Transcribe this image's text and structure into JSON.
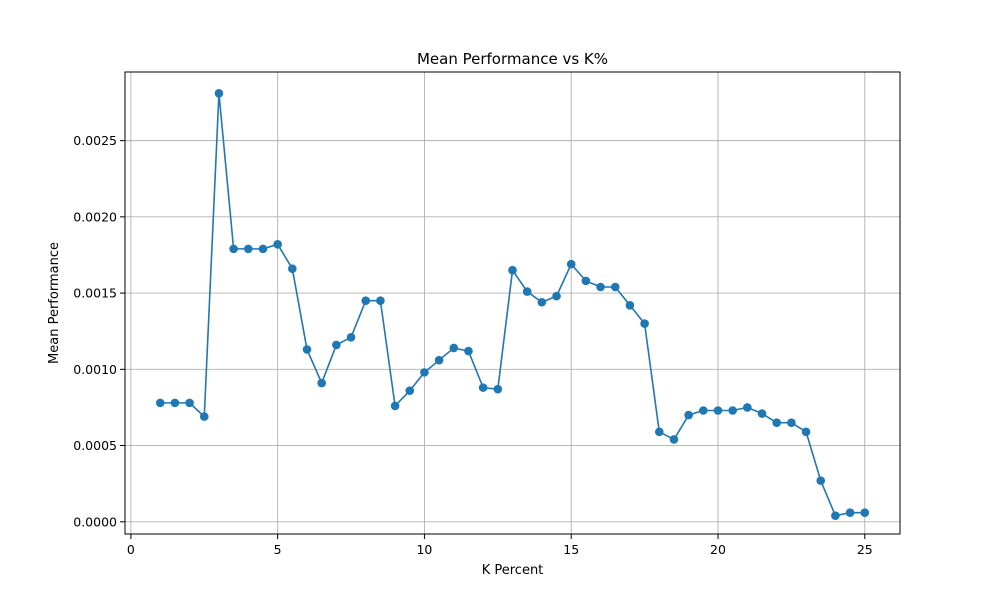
{
  "chart_data": {
    "type": "line",
    "title": "Mean Performance vs K%",
    "xlabel": "K Percent",
    "ylabel": "Mean Performance",
    "xlim": [
      -0.2,
      26.2
    ],
    "ylim": [
      -8e-05,
      0.00295
    ],
    "xticks": [
      0,
      5,
      10,
      15,
      20,
      25
    ],
    "xtick_labels": [
      "0",
      "5",
      "10",
      "15",
      "20",
      "25"
    ],
    "yticks": [
      0.0,
      0.0005,
      0.001,
      0.0015,
      0.002,
      0.0025
    ],
    "ytick_labels": [
      "0.0000",
      "0.0005",
      "0.0010",
      "0.0015",
      "0.0020",
      "0.0025"
    ],
    "grid": true,
    "legend": "none",
    "color": "#1f77b4",
    "marker": "circle",
    "series": [
      {
        "x": [
          1,
          1.5,
          2,
          2.5,
          3,
          3.5,
          4,
          4.5,
          5,
          5.5,
          6,
          6.5,
          7,
          7.5,
          8,
          8.5,
          9,
          9.5,
          10,
          10.5,
          11,
          11.5,
          12,
          12.5,
          13,
          13.5,
          14,
          14.5,
          15,
          15.5,
          16,
          16.5,
          17,
          17.5,
          18,
          18.5,
          19,
          19.5,
          20,
          20.5,
          21,
          21.5,
          22,
          22.5,
          23,
          23.5,
          24,
          24.5,
          25
        ],
        "values": [
          0.00078,
          0.00078,
          0.00078,
          0.00069,
          0.00281,
          0.00179,
          0.00179,
          0.00179,
          0.00182,
          0.00166,
          0.00113,
          0.00091,
          0.00116,
          0.00121,
          0.00145,
          0.00145,
          0.00076,
          0.00086,
          0.00098,
          0.00106,
          0.00114,
          0.00112,
          0.00088,
          0.00087,
          0.00165,
          0.00151,
          0.00144,
          0.00148,
          0.00169,
          0.00158,
          0.00154,
          0.00154,
          0.00142,
          0.0013,
          0.00059,
          0.00054,
          0.0007,
          0.00073,
          0.00073,
          0.00073,
          0.00075,
          0.00071,
          0.00065,
          0.00065,
          0.00059,
          0.00027,
          4e-05,
          6e-05,
          6e-05
        ]
      }
    ]
  }
}
